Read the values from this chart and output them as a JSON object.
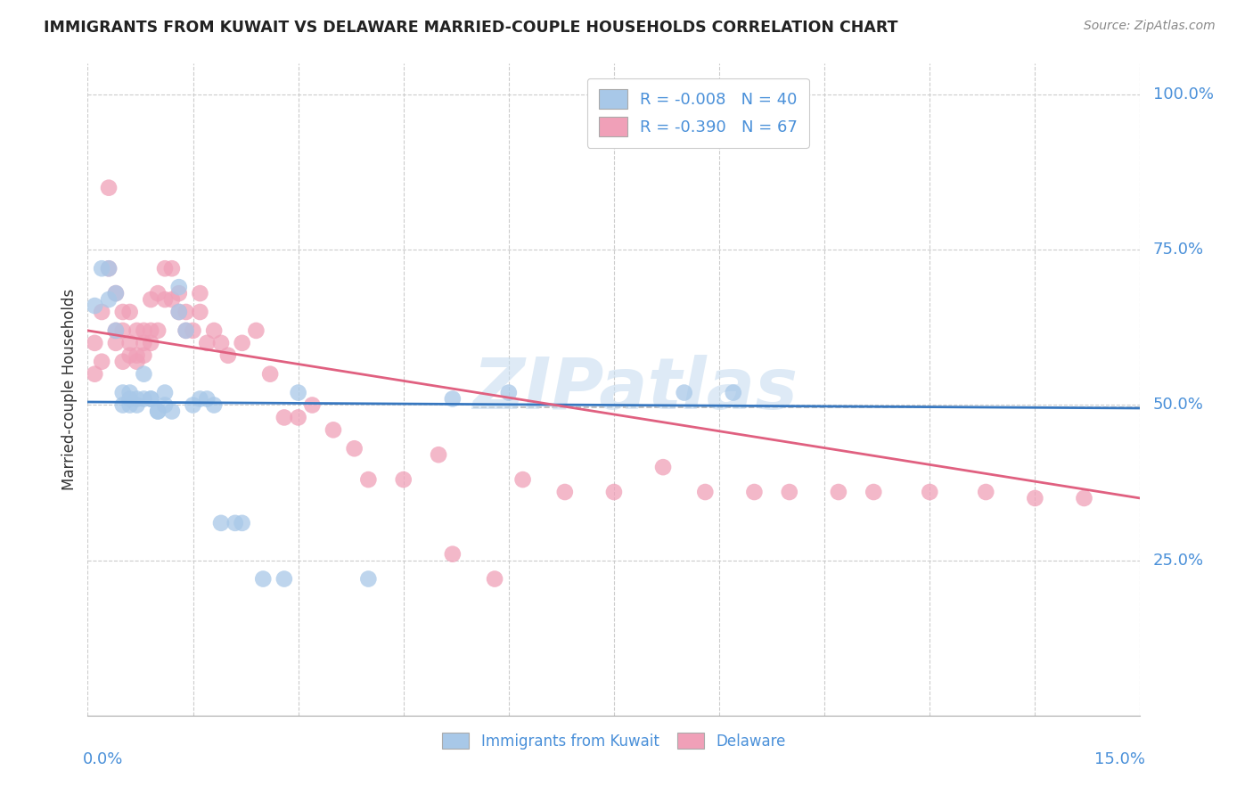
{
  "title": "IMMIGRANTS FROM KUWAIT VS DELAWARE MARRIED-COUPLE HOUSEHOLDS CORRELATION CHART",
  "source": "Source: ZipAtlas.com",
  "ylabel": "Married-couple Households",
  "color_blue": "#a8c8e8",
  "color_pink": "#f0a0b8",
  "trendline_blue": "#3878c0",
  "trendline_pink": "#e06080",
  "trendline_dashed": "#b8b8b8",
  "watermark_color": "#c8ddf0",
  "xlim": [
    0.0,
    0.15
  ],
  "ylim": [
    0.0,
    1.05
  ],
  "legend_entry1": "R = -0.008   N = 40",
  "legend_entry2": "R = -0.390   N = 67",
  "blue_scatter_x": [
    0.001,
    0.002,
    0.003,
    0.003,
    0.004,
    0.004,
    0.005,
    0.005,
    0.006,
    0.006,
    0.006,
    0.007,
    0.007,
    0.008,
    0.008,
    0.009,
    0.009,
    0.01,
    0.01,
    0.011,
    0.011,
    0.012,
    0.013,
    0.013,
    0.014,
    0.015,
    0.016,
    0.017,
    0.018,
    0.019,
    0.021,
    0.022,
    0.025,
    0.028,
    0.03,
    0.04,
    0.052,
    0.06,
    0.085,
    0.092
  ],
  "blue_scatter_y": [
    0.66,
    0.72,
    0.72,
    0.67,
    0.68,
    0.62,
    0.52,
    0.5,
    0.51,
    0.5,
    0.52,
    0.51,
    0.5,
    0.51,
    0.55,
    0.51,
    0.51,
    0.49,
    0.49,
    0.5,
    0.52,
    0.49,
    0.69,
    0.65,
    0.62,
    0.5,
    0.51,
    0.51,
    0.5,
    0.31,
    0.31,
    0.31,
    0.22,
    0.22,
    0.52,
    0.22,
    0.51,
    0.52,
    0.52,
    0.52
  ],
  "pink_scatter_x": [
    0.001,
    0.001,
    0.002,
    0.002,
    0.003,
    0.003,
    0.004,
    0.004,
    0.004,
    0.005,
    0.005,
    0.005,
    0.006,
    0.006,
    0.006,
    0.007,
    0.007,
    0.007,
    0.008,
    0.008,
    0.008,
    0.009,
    0.009,
    0.009,
    0.01,
    0.01,
    0.011,
    0.011,
    0.012,
    0.012,
    0.013,
    0.013,
    0.014,
    0.014,
    0.015,
    0.016,
    0.016,
    0.017,
    0.018,
    0.019,
    0.02,
    0.022,
    0.024,
    0.026,
    0.028,
    0.03,
    0.032,
    0.035,
    0.038,
    0.04,
    0.045,
    0.05,
    0.052,
    0.058,
    0.062,
    0.068,
    0.075,
    0.082,
    0.088,
    0.095,
    0.1,
    0.107,
    0.112,
    0.12,
    0.128,
    0.135,
    0.142
  ],
  "pink_scatter_y": [
    0.55,
    0.6,
    0.65,
    0.57,
    0.85,
    0.72,
    0.68,
    0.62,
    0.6,
    0.57,
    0.62,
    0.65,
    0.6,
    0.58,
    0.65,
    0.58,
    0.62,
    0.57,
    0.6,
    0.62,
    0.58,
    0.6,
    0.62,
    0.67,
    0.62,
    0.68,
    0.67,
    0.72,
    0.67,
    0.72,
    0.65,
    0.68,
    0.65,
    0.62,
    0.62,
    0.65,
    0.68,
    0.6,
    0.62,
    0.6,
    0.58,
    0.6,
    0.62,
    0.55,
    0.48,
    0.48,
    0.5,
    0.46,
    0.43,
    0.38,
    0.38,
    0.42,
    0.26,
    0.22,
    0.38,
    0.36,
    0.36,
    0.4,
    0.36,
    0.36,
    0.36,
    0.36,
    0.36,
    0.36,
    0.36,
    0.35,
    0.35
  ],
  "blue_trend_x": [
    0.0,
    0.15
  ],
  "blue_trend_y": [
    0.505,
    0.495
  ],
  "pink_trend_x": [
    0.0,
    0.15
  ],
  "pink_trend_y": [
    0.62,
    0.35
  ]
}
